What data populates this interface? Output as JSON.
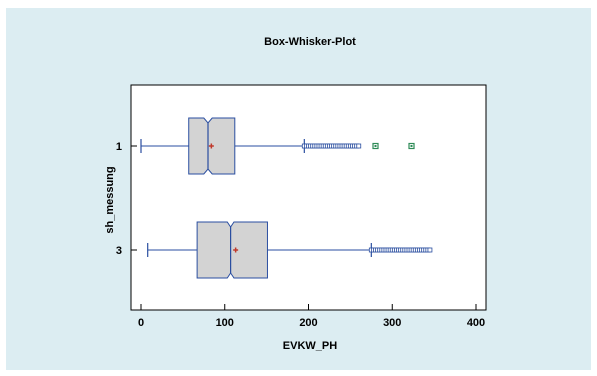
{
  "chart_data": {
    "type": "boxplot",
    "title": "Box-Whisker-Plot",
    "xlabel": "EVKW_PH",
    "ylabel": "sh_messung",
    "xlim": [
      -5,
      405
    ],
    "xticks": [
      "0",
      "100",
      "200",
      "300",
      "400"
    ],
    "xtick_values": [
      0,
      100,
      200,
      300,
      400
    ],
    "groups": [
      {
        "label": "1",
        "whisker_low": 0,
        "q1": 57,
        "median": 80,
        "notch_low": 75,
        "notch_high": 85,
        "q3": 112,
        "whisker_high": 195,
        "mean": 84,
        "outliers_range": [
          195,
          262
        ],
        "far_outliers": [
          280,
          323
        ]
      },
      {
        "label": "3",
        "whisker_low": 8,
        "q1": 67,
        "median": 107,
        "notch_low": 103,
        "notch_high": 111,
        "q3": 151,
        "whisker_high": 275,
        "mean": 113,
        "outliers_range": [
          275,
          345
        ],
        "far_outliers": []
      }
    ],
    "colors": {
      "background": "#dcedf2",
      "plot_area": "#ffffff",
      "box_fill": "#d3d3d3",
      "box_stroke": "#2a4ea0",
      "mean_marker": "#c0392b",
      "far_outlier": "#2e8b57"
    }
  }
}
